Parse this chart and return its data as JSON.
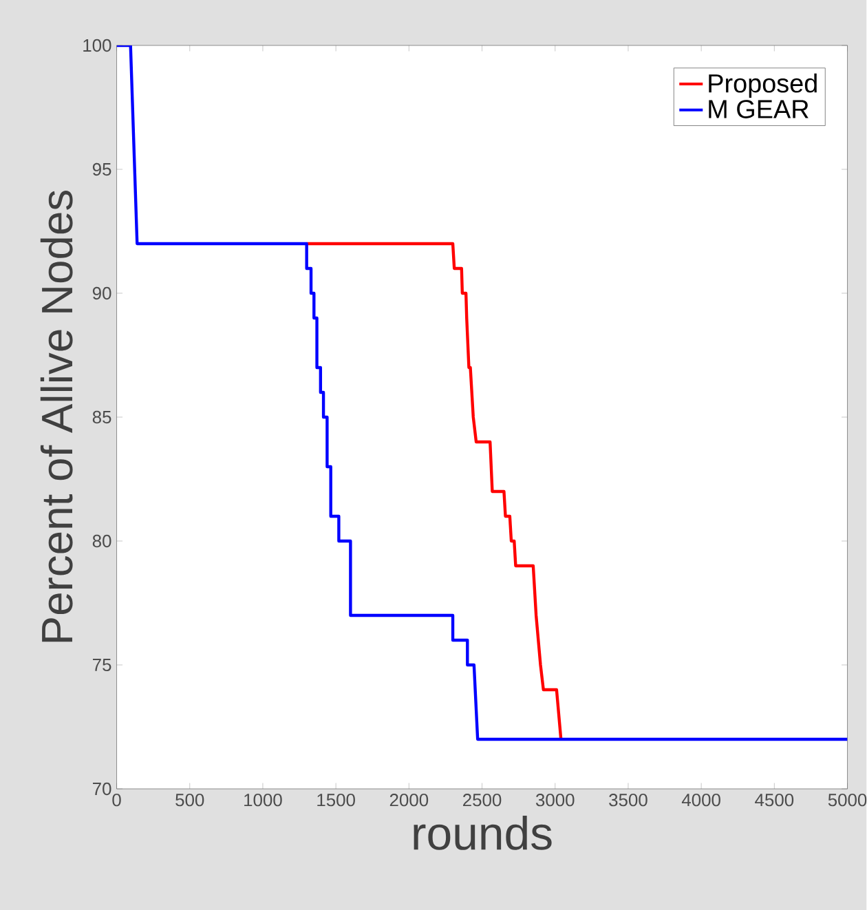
{
  "chart_data": {
    "type": "line",
    "xlabel": "rounds",
    "ylabel": "Percent of Allive Nodes",
    "xlim": [
      0,
      5000
    ],
    "ylim": [
      70,
      100
    ],
    "xticks": [
      0,
      500,
      1000,
      1500,
      2000,
      2500,
      3000,
      3500,
      4000,
      4500,
      5000
    ],
    "yticks": [
      70,
      75,
      80,
      85,
      90,
      95,
      100
    ],
    "grid": false,
    "legend": "top right",
    "marker": "none",
    "line_style": "solid",
    "series": [
      {
        "name": "Proposed",
        "color": "#ff0000",
        "x": [
          1300,
          2300,
          2310,
          2360,
          2365,
          2390,
          2395,
          2410,
          2420,
          2440,
          2460,
          2555,
          2570,
          2650,
          2660,
          2690,
          2700,
          2720,
          2730,
          2850,
          2870,
          2900,
          2920,
          3010,
          3040
        ],
        "values": [
          92,
          92,
          91,
          91,
          90,
          90,
          89,
          87,
          87,
          85,
          84,
          84,
          82,
          82,
          81,
          81,
          80,
          80,
          79,
          79,
          77,
          75,
          74,
          74,
          72
        ]
      },
      {
        "name": "M GEAR",
        "color": "#0000ff",
        "x": [
          0,
          95,
          140,
          1300,
          1300,
          1330,
          1330,
          1350,
          1350,
          1370,
          1370,
          1395,
          1395,
          1415,
          1415,
          1440,
          1440,
          1465,
          1465,
          1520,
          1520,
          1600,
          1600,
          2300,
          2300,
          2400,
          2400,
          2445,
          2470,
          5000
        ],
        "values": [
          100,
          100,
          92,
          92,
          91,
          91,
          90,
          90,
          89,
          89,
          87,
          87,
          86,
          86,
          85,
          85,
          83,
          83,
          81,
          81,
          80,
          80,
          77,
          77,
          76,
          76,
          75,
          75,
          72,
          72
        ]
      }
    ]
  }
}
